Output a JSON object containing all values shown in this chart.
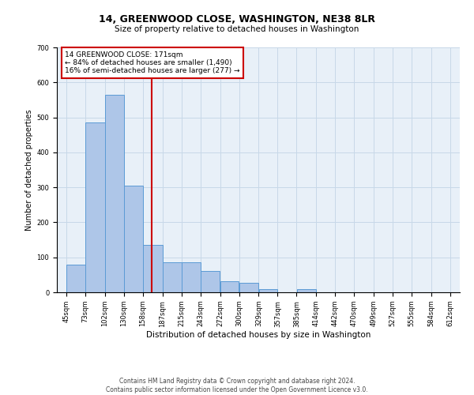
{
  "title": "14, GREENWOOD CLOSE, WASHINGTON, NE38 8LR",
  "subtitle": "Size of property relative to detached houses in Washington",
  "xlabel": "Distribution of detached houses by size in Washington",
  "ylabel": "Number of detached properties",
  "footer_line1": "Contains HM Land Registry data © Crown copyright and database right 2024.",
  "footer_line2": "Contains public sector information licensed under the Open Government Licence v3.0.",
  "property_label": "14 GREENWOOD CLOSE: 171sqm",
  "annotation_line1": "← 84% of detached houses are smaller (1,490)",
  "annotation_line2": "16% of semi-detached houses are larger (277) →",
  "bar_edges": [
    45,
    73,
    102,
    130,
    158,
    187,
    215,
    243,
    272,
    300,
    329,
    357,
    385,
    414,
    442,
    470,
    499,
    527,
    555,
    584,
    612
  ],
  "bar_heights": [
    80,
    485,
    565,
    305,
    135,
    85,
    85,
    62,
    32,
    27,
    10,
    0,
    8,
    0,
    0,
    0,
    0,
    0,
    0,
    0
  ],
  "bar_color": "#aec6e8",
  "bar_edge_color": "#5b9bd5",
  "vline_x": 171,
  "vline_color": "#cc0000",
  "vline_lw": 1.5,
  "annotation_box_color": "#cc0000",
  "annotation_box_facecolor": "white",
  "grid_color": "#c8d8e8",
  "background_color": "#e8f0f8",
  "ylim": [
    0,
    700
  ],
  "yticks": [
    0,
    100,
    200,
    300,
    400,
    500,
    600,
    700
  ],
  "title_fontsize": 9,
  "subtitle_fontsize": 7.5,
  "xlabel_fontsize": 7.5,
  "ylabel_fontsize": 7,
  "tick_fontsize": 6,
  "annotation_fontsize": 6.5,
  "footer_fontsize": 5.5
}
